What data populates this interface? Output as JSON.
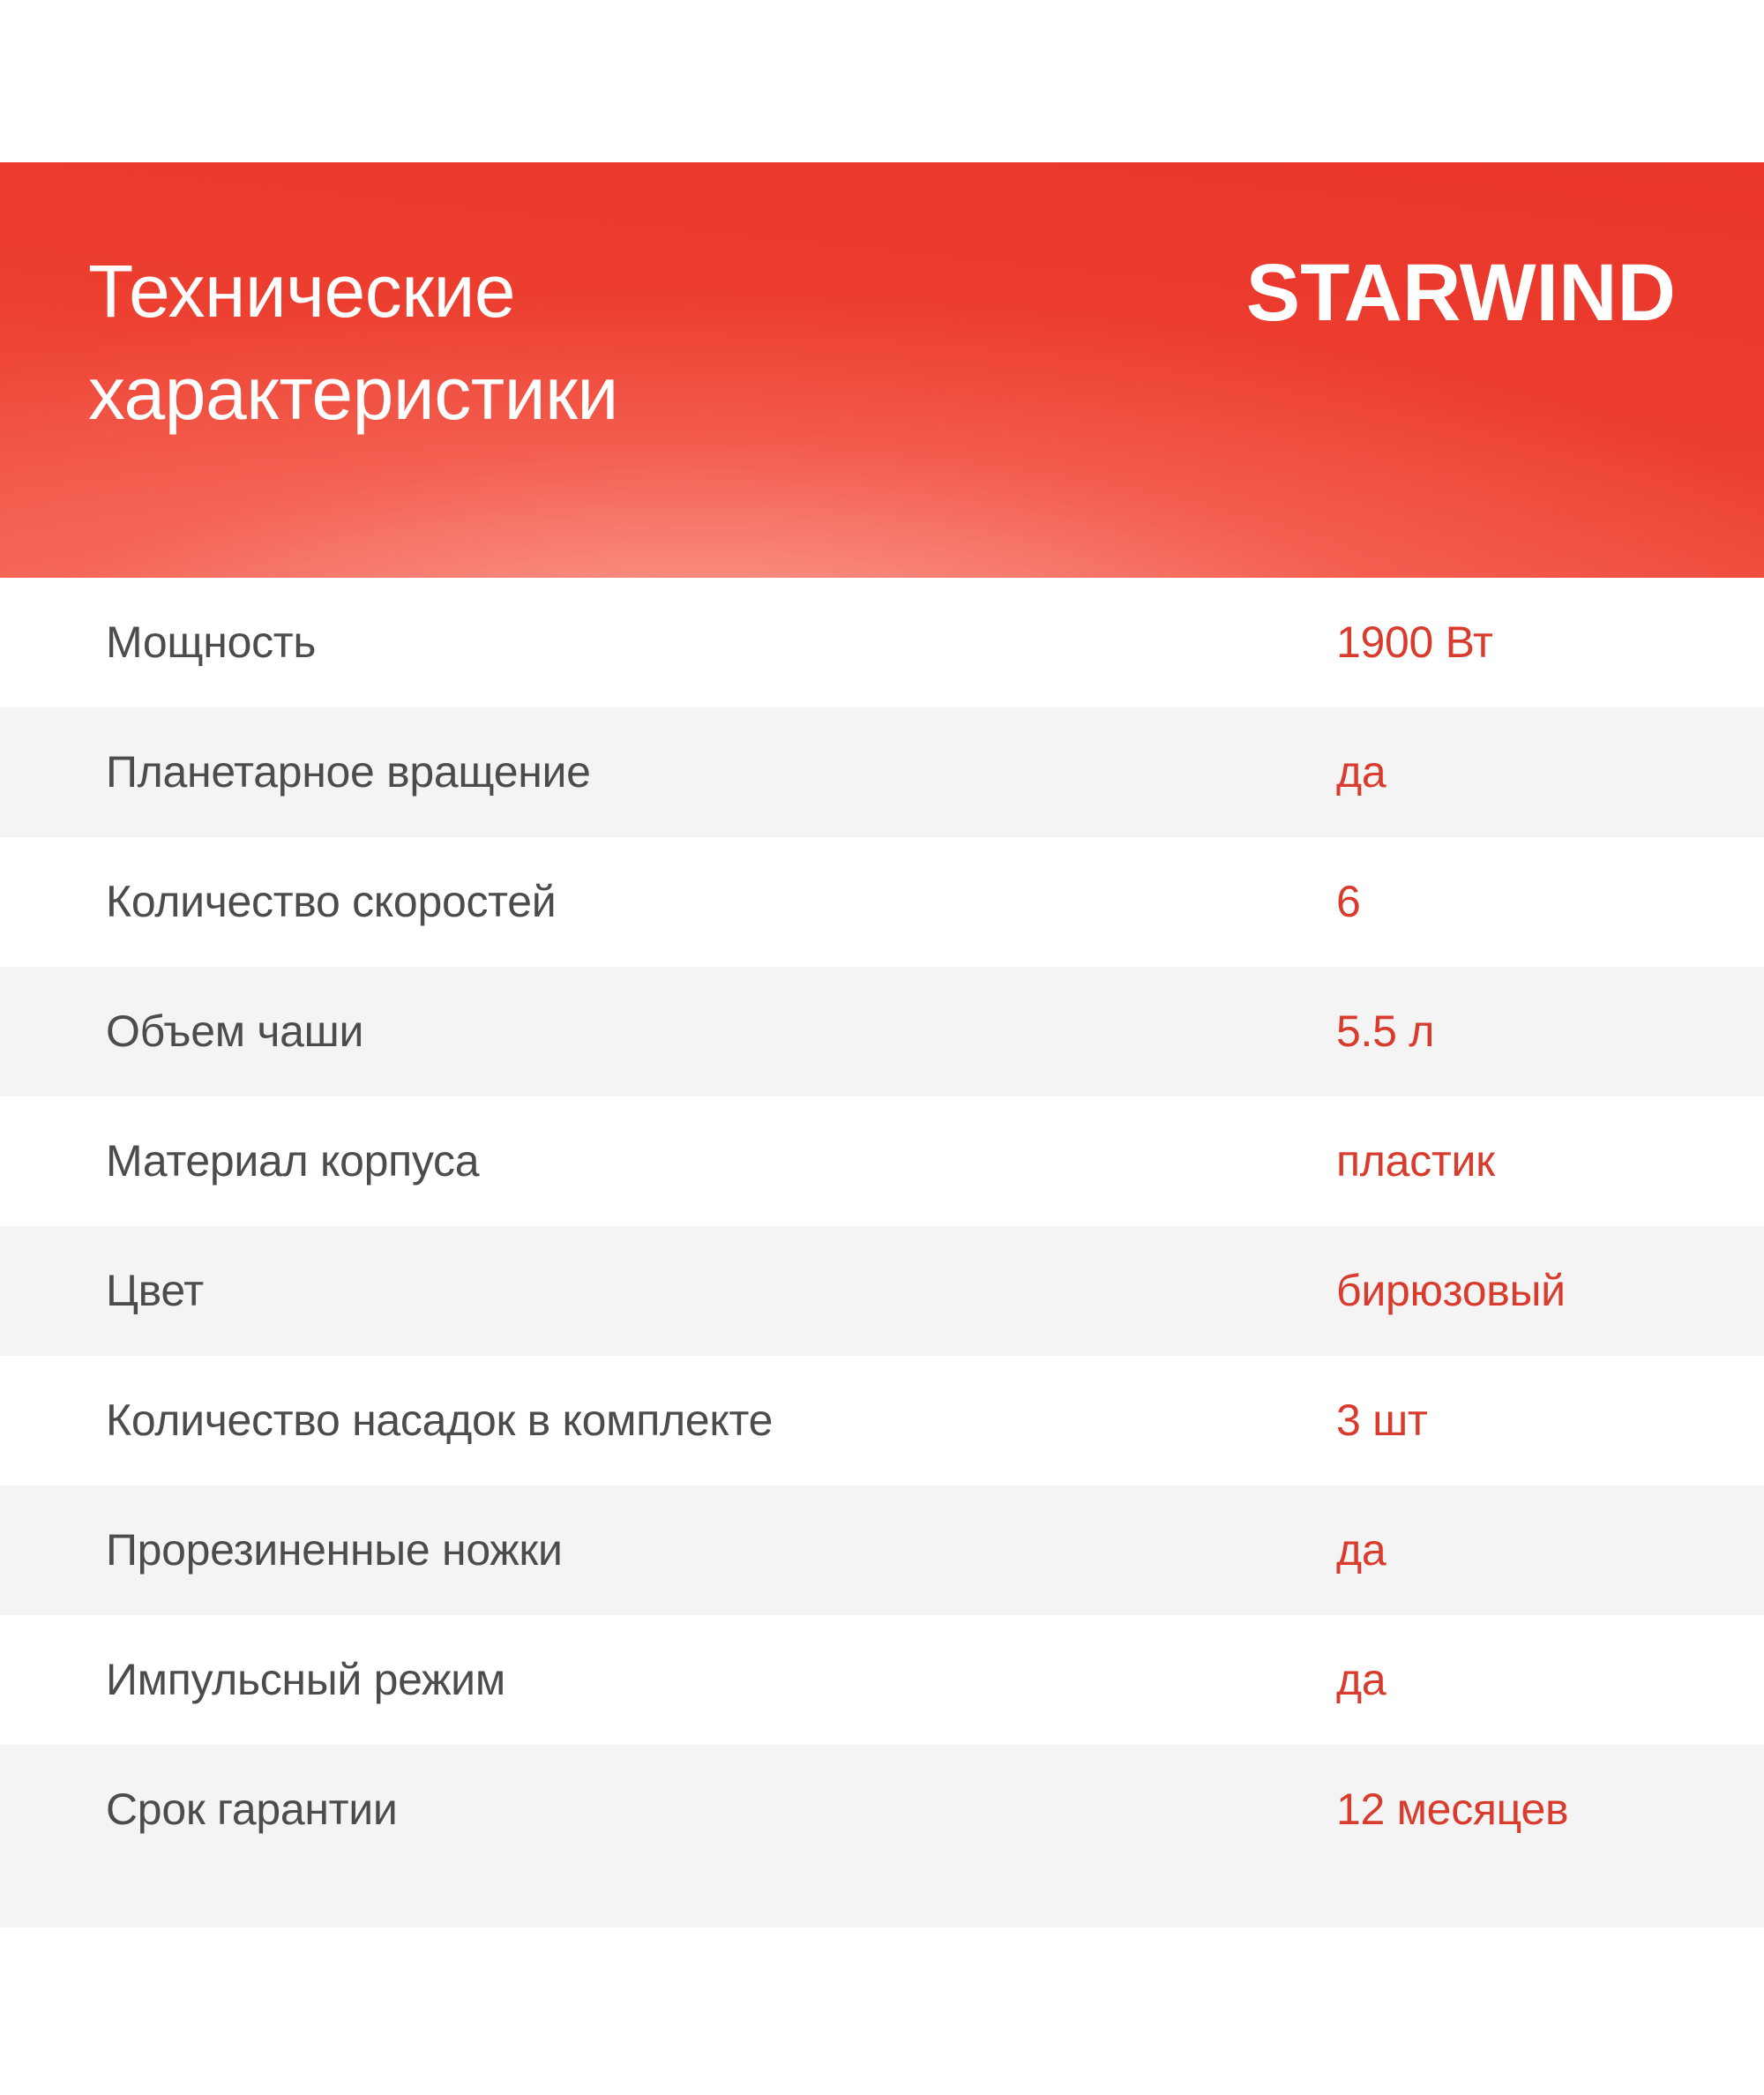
{
  "header": {
    "title_line1": "Технические",
    "title_line2": "характеристики",
    "brand": "STARWIND"
  },
  "table": {
    "rows": [
      {
        "label": "Мощность",
        "value": "1900 Вт"
      },
      {
        "label": "Планетарное вращение",
        "value": "да"
      },
      {
        "label": "Количество скоростей",
        "value": "6"
      },
      {
        "label": "Объем чаши",
        "value": "5.5 л"
      },
      {
        "label": "Материал корпуса",
        "value": "пластик"
      },
      {
        "label": "Цвет",
        "value": "бирюзовый"
      },
      {
        "label": "Количество насадок в комплекте",
        "value": "3 шт"
      },
      {
        "label": "Прорезиненные ножки",
        "value": "да"
      },
      {
        "label": "Импульсный режим",
        "value": "да"
      },
      {
        "label": "Срок гарантии",
        "value": "12 месяцев"
      }
    ]
  },
  "colors": {
    "banner_red_top": "#e9352a",
    "banner_red_bottom": "#f15a4a",
    "banner_glow": "#ffb0a5",
    "value_red": "#d93b2d",
    "label_gray": "#4c4c4c",
    "row_alt_bg": "#f5f4f5",
    "page_bg": "#ffffff",
    "title_white": "#ffffff"
  }
}
